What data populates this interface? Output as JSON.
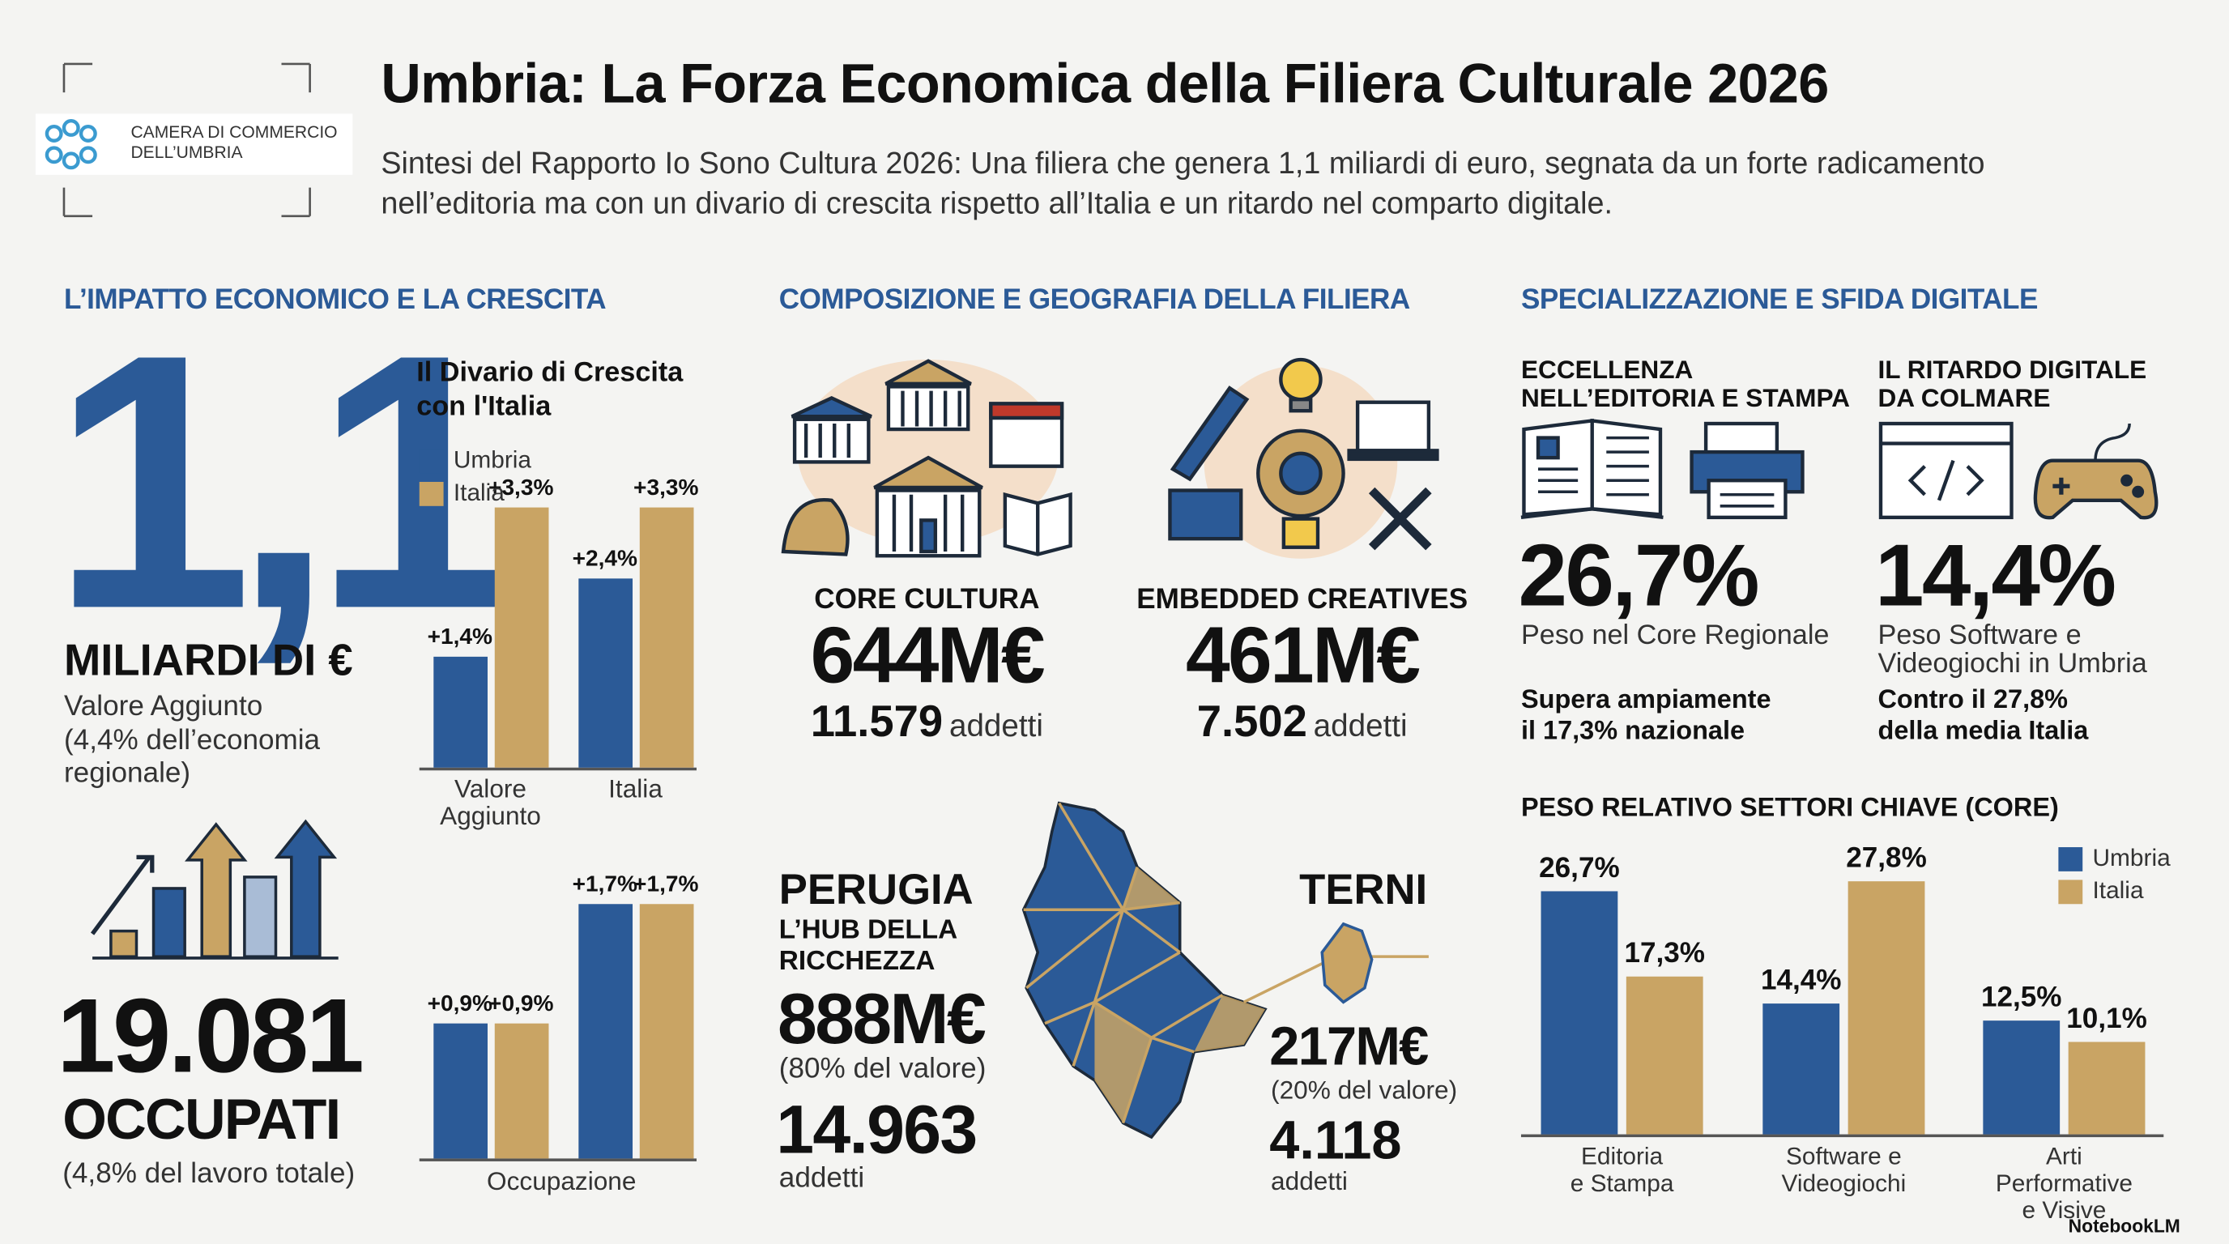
{
  "header": {
    "logo_text": "CAMERA DI COMMERCIO\nDELL’UMBRIA",
    "title": "Umbria: La Forza Economica della Filiera Culturale 2026",
    "subtitle": "Sintesi del Rapporto Io Sono Cultura 2026: Una filiera che genera 1,1 miliardi di euro, segnata da un forte radicamento nell’editoria ma con un divario di crescita rispetto all’Italia e un ritardo nel comparto digitale."
  },
  "sections": [
    {
      "heading": "L’IMPATTO ECONOMICO E LA CRESCITA",
      "big_value": "1,1",
      "big_unit": "MILIARDI DI €",
      "big_note": "Valore Aggiunto\n(4,4% dell’economia\nregionale)",
      "jobs_value": "19.081",
      "jobs_unit": "OCCUPATI",
      "jobs_note": "(4,8% del lavoro totale)"
    },
    {
      "heading": "COMPOSIZIONE E GEOGRAFIA DELLA FILIERA",
      "blocks": [
        {
          "label": "CORE CULTURA",
          "value": "644M€",
          "count": "11.579",
          "count_unit": "addetti"
        },
        {
          "label": "EMBEDDED CREATIVES",
          "value": "461M€",
          "count": "7.502",
          "count_unit": "addetti"
        }
      ],
      "provinces": [
        {
          "name": "PERUGIA",
          "tagline": "L’HUB DELLA\nRICCHEZZA",
          "value": "888M€",
          "share": "(80% del valore)",
          "count": "14.963",
          "count_unit": "addetti"
        },
        {
          "name": "TERNI",
          "value": "217M€",
          "share": "(20% del valore)",
          "count": "4.118",
          "count_unit": "addetti"
        }
      ]
    },
    {
      "heading": "SPECIALIZZAZIONE E SFIDA DIGITALE",
      "cards": [
        {
          "title": "ECCELLENZA\nNELL’EDITORIA E STAMPA",
          "value": "26,7%",
          "caption": "Peso nel Core Regionale",
          "note": "Supera ampiamente\nil 17,3% nazionale"
        },
        {
          "title": "IL RITARDO DIGITALE\nDA COLMARE",
          "value": "14,4%",
          "caption": "Peso Software e\nVideogiochi in Umbria",
          "note": "Contro il 27,8%\ndella media Italia"
        }
      ]
    }
  ],
  "footer": "NotebookLM",
  "chart_data": [
    {
      "type": "bar",
      "title": "Il Divario di Crescita\ncon l'Italia",
      "categories": [
        "Valore\nAggiunto",
        "Italia"
      ],
      "series": [
        {
          "name": "Umbria",
          "color": "#2b5a97",
          "values": [
            1.4,
            2.4
          ],
          "value_labels": [
            "+1,4%",
            "+2,4%"
          ]
        },
        {
          "name": "Italia",
          "color": "#c9a464",
          "values": [
            3.3,
            3.3
          ],
          "value_labels": [
            "+3,3%",
            "+3,3%"
          ]
        }
      ],
      "legend": "top-left"
    },
    {
      "type": "bar",
      "x_label": "Occupazione",
      "categories": [
        null,
        null
      ],
      "series": [
        {
          "color": "#2b5a97",
          "values": [
            0.9,
            1.7
          ],
          "value_labels": [
            "+0,9%",
            "+1,7%"
          ]
        },
        {
          "color": "#c9a464",
          "values": [
            0.9,
            1.7
          ],
          "value_labels": [
            "+0,9%",
            "+1,7%"
          ]
        }
      ]
    },
    {
      "type": "bar",
      "title": "PESO RELATIVO SETTORI CHIAVE (CORE)",
      "categories": [
        "Editoria\ne Stampa",
        "Software e\nVideogiochi",
        "Arti Performative\ne Visive"
      ],
      "series": [
        {
          "name": "Umbria",
          "color": "#2b5a97",
          "values": [
            26.7,
            14.4,
            12.5
          ],
          "value_labels": [
            "26,7%",
            "14,4%",
            "12,5%"
          ]
        },
        {
          "name": "Italia",
          "color": "#c9a464",
          "values": [
            17.3,
            27.8,
            10.1
          ],
          "value_labels": [
            "17,3%",
            "27,8%",
            "10,1%"
          ]
        }
      ],
      "legend": "top-right"
    }
  ]
}
